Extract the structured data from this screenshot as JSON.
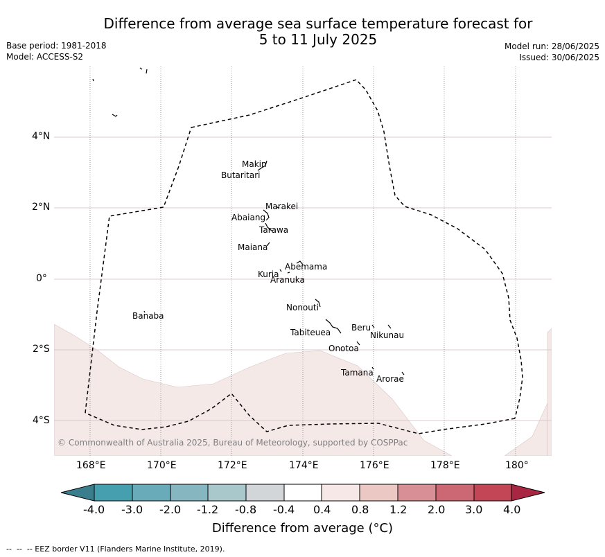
{
  "header": {
    "title_line1": "Difference from average sea surface temperature forecast for",
    "title_line2": "5 to 11 July 2025",
    "base_period": "Base period: 1981-2018",
    "model": "Model: ACCESS-S2",
    "model_run": "Model run: 28/06/2025",
    "issued": "Issued: 30/06/2025"
  },
  "map": {
    "lat_ticks": [
      "4°N",
      "2°N",
      "0°",
      "2°S",
      "4°S"
    ],
    "lon_ticks": [
      "168°E",
      "170°E",
      "172°E",
      "174°E",
      "176°E",
      "178°E",
      "180°"
    ],
    "copyright": "© Commonwealth of Australia 2025, Bureau of Meteorology, supported by COSPPac",
    "islands": [
      {
        "name": "Makin"
      },
      {
        "name": "Butaritari"
      },
      {
        "name": "Marakei"
      },
      {
        "name": "Abaiang"
      },
      {
        "name": "Tarawa"
      },
      {
        "name": "Maiana"
      },
      {
        "name": "Abemama"
      },
      {
        "name": "Kuria"
      },
      {
        "name": "Aranuka"
      },
      {
        "name": "Banaba"
      },
      {
        "name": "Nonouti"
      },
      {
        "name": "Tabiteuea"
      },
      {
        "name": "Beru"
      },
      {
        "name": "Nikunau"
      },
      {
        "name": "Onotoa"
      },
      {
        "name": "Tamana"
      },
      {
        "name": "Arorae"
      }
    ],
    "colors": {
      "anomaly_fill": "#f5e9e8",
      "eez_line": "#000000",
      "grid": "#d9c9cc"
    }
  },
  "colorbar": {
    "labels": [
      "-4.0",
      "-3.0",
      "-2.0",
      "-1.2",
      "-0.8",
      "-0.4",
      "0.4",
      "0.8",
      "1.2",
      "2.0",
      "3.0",
      "4.0"
    ],
    "colors": [
      "#3a7e8e",
      "#469fae",
      "#69abb8",
      "#86b6bf",
      "#a8c8cb",
      "#d2d6d8",
      "#ffffff",
      "#f6e8e6",
      "#ebc8c4",
      "#d98f96",
      "#cc6873",
      "#c34656",
      "#a82641"
    ],
    "label": "Difference from average (°C)"
  },
  "footer": {
    "eez_legend": "--  --  -- EEZ border V11 (Flanders Marine Institute, 2019)."
  }
}
